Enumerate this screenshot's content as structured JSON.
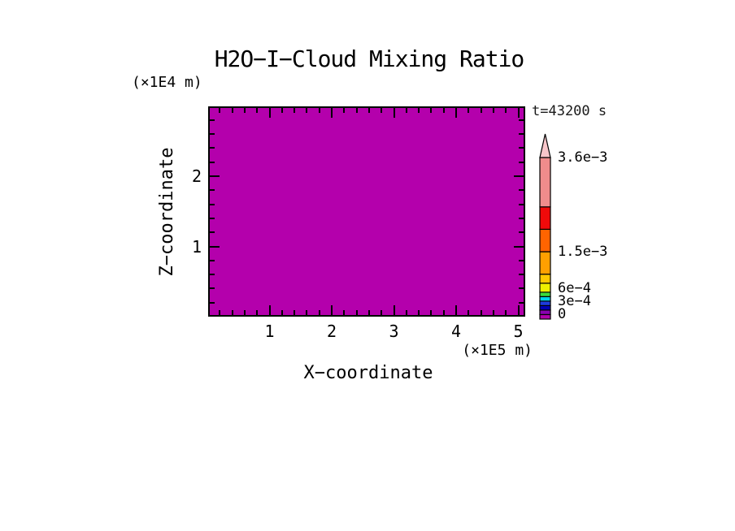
{
  "chart_data": {
    "type": "heatmap",
    "title": "H2O−I−Cloud Mixing Ratio",
    "time_annotation": "t=43200 s",
    "xlabel": "X−coordinate",
    "x_unit_label": "(×1E5 m)",
    "x_range": [
      0,
      5.1
    ],
    "x_major_ticks": [
      1,
      2,
      3,
      4,
      5
    ],
    "x_minor_tick_step": 0.2,
    "ylabel": "Z−coordinate",
    "y_unit_label": "(×1E4 m)",
    "y_range": [
      0,
      3.0
    ],
    "y_major_ticks": [
      1,
      2
    ],
    "y_minor_tick_step": 0.2,
    "grid": false,
    "field": {
      "description": "uniform field: entire plot domain lies in the lowest colorbar bin",
      "uniform_bin": [
        0,
        0.0001
      ],
      "fill_color": "#B400AC"
    },
    "colorbar": {
      "orientation": "vertical",
      "value_min": 0,
      "value_max": 0.0036,
      "levels": [
        0,
        0.0001,
        0.0002,
        0.0003,
        0.0004,
        0.0005,
        0.0006,
        0.0008,
        0.001,
        0.0015,
        0.002,
        0.0025,
        0.0036
      ],
      "colors": [
        "#B400AC",
        "#8A00B0",
        "#0000B4",
        "#1E3CDC",
        "#00D2E6",
        "#3CDC3C",
        "#EEF000",
        "#FFC800",
        "#FFA000",
        "#FF6400",
        "#F00A0A",
        "#F08C8C"
      ],
      "over_arrow_color": "#F8C6CA",
      "labels": [
        {
          "value": 0.0036,
          "text": "3.6e−3"
        },
        {
          "value": 0.0015,
          "text": "1.5e−3"
        },
        {
          "value": 0.0006,
          "text": "6e−4"
        },
        {
          "value": 0.0003,
          "text": "3e−4"
        },
        {
          "value": 0,
          "text": "0"
        }
      ]
    }
  }
}
